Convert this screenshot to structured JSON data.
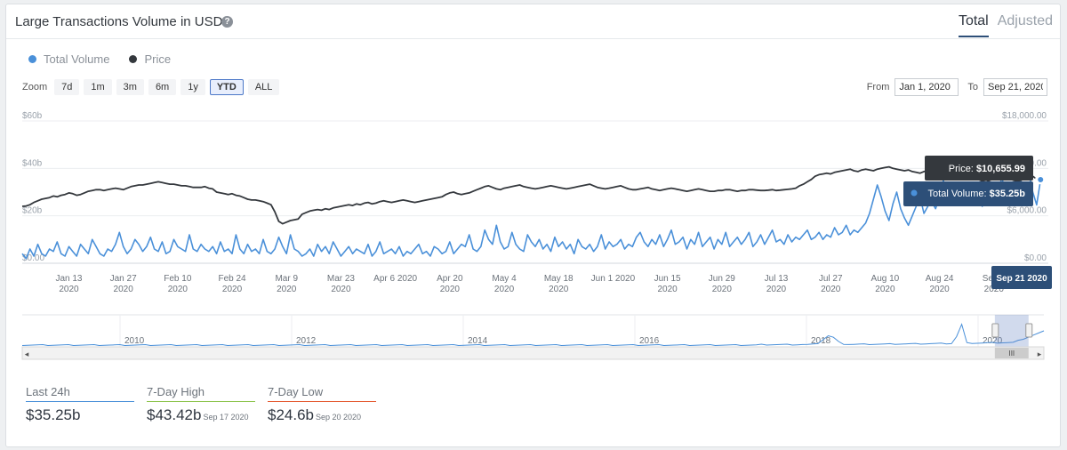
{
  "header": {
    "title": "Large Transactions Volume in USD",
    "help": "?",
    "tabs": [
      "Total",
      "Adjusted"
    ],
    "active_tab": "Total"
  },
  "legend": {
    "volume": "Total Volume",
    "price": "Price"
  },
  "zoom": {
    "label": "Zoom",
    "buttons": [
      "7d",
      "1m",
      "3m",
      "6m",
      "1y",
      "YTD",
      "ALL"
    ],
    "active": "YTD"
  },
  "range": {
    "from_label": "From",
    "from_value": "Jan 1, 2020",
    "to_label": "To",
    "to_value": "Sep 21, 2020"
  },
  "tooltip": {
    "price_label": "Price: ",
    "price_value": "$10,655.99",
    "volume_label": "Total Volume: ",
    "volume_value": "$35.25b",
    "date": "Sep 21 2020"
  },
  "navigator": {
    "years": [
      "2010",
      "2012",
      "2014",
      "2016",
      "2018",
      "2020"
    ],
    "scroll_grip": "III",
    "left_arrow": "◂",
    "right_arrow": "▸",
    "selection": [
      0.952,
      0.985
    ]
  },
  "stats": [
    {
      "label": "Last 24h",
      "value": "$35.25b",
      "date": "",
      "color": "#4a90d9"
    },
    {
      "label": "7-Day High",
      "value": "$43.42b",
      "date": "Sep 17 2020",
      "color": "#8bc34a"
    },
    {
      "label": "7-Day Low",
      "value": "$24.6b",
      "date": "Sep 20 2020",
      "color": "#e4572e"
    }
  ],
  "colors": {
    "volume": "#4a90d9",
    "price": "#34383d"
  },
  "chart_data": {
    "type": "line",
    "title": "Large Transactions Volume in USD",
    "x_ticks": [
      {
        "day": 12,
        "label": [
          "Jan 13",
          "2020"
        ]
      },
      {
        "day": 26,
        "label": [
          "Jan 27",
          "2020"
        ]
      },
      {
        "day": 40,
        "label": [
          "Feb 10",
          "2020"
        ]
      },
      {
        "day": 54,
        "label": [
          "Feb 24",
          "2020"
        ]
      },
      {
        "day": 68,
        "label": [
          "Mar 9",
          "2020"
        ]
      },
      {
        "day": 82,
        "label": [
          "Mar 23",
          "2020"
        ]
      },
      {
        "day": 96,
        "label": [
          "Apr 6 2020"
        ]
      },
      {
        "day": 110,
        "label": [
          "Apr 20",
          "2020"
        ]
      },
      {
        "day": 124,
        "label": [
          "May 4",
          "2020"
        ]
      },
      {
        "day": 138,
        "label": [
          "May 18",
          "2020"
        ]
      },
      {
        "day": 152,
        "label": [
          "Jun 1 2020"
        ]
      },
      {
        "day": 166,
        "label": [
          "Jun 15",
          "2020"
        ]
      },
      {
        "day": 180,
        "label": [
          "Jun 29",
          "2020"
        ]
      },
      {
        "day": 194,
        "label": [
          "Jul 13",
          "2020"
        ]
      },
      {
        "day": 208,
        "label": [
          "Jul 27",
          "2020"
        ]
      },
      {
        "day": 222,
        "label": [
          "Aug 10",
          "2020"
        ]
      },
      {
        "day": 236,
        "label": [
          "Aug 24",
          "2020"
        ]
      },
      {
        "day": 250,
        "label": [
          "Sep 7",
          "2020"
        ]
      }
    ],
    "x_range_days": [
      0,
      264
    ],
    "y_left": {
      "ticks": [
        "$0.00",
        "$20b",
        "$40b",
        "$60b"
      ],
      "min": 0,
      "max": 60
    },
    "y_right": {
      "ticks": [
        "$0.00",
        "$6,000.00",
        "$12,000.00",
        "$18,000.00"
      ],
      "min": 0,
      "max": 18000
    },
    "series": [
      {
        "name": "Total Volume",
        "axis": "left",
        "values": [
          4,
          2,
          6,
          3,
          8,
          4,
          3,
          6,
          5,
          9,
          4,
          3,
          7,
          5,
          3,
          8,
          6,
          4,
          10,
          7,
          4,
          3,
          6,
          5,
          8,
          13,
          7,
          4,
          6,
          10,
          8,
          5,
          7,
          11,
          6,
          5,
          9,
          4,
          5,
          10,
          7,
          6,
          5,
          12,
          6,
          5,
          8,
          6,
          5,
          7,
          4,
          9,
          5,
          6,
          4,
          12,
          6,
          4,
          8,
          5,
          6,
          4,
          10,
          5,
          4,
          6,
          11,
          7,
          4,
          12,
          6,
          5,
          3,
          4,
          6,
          3,
          8,
          5,
          7,
          4,
          9,
          6,
          3,
          5,
          7,
          4,
          6,
          5,
          4,
          8,
          3,
          5,
          9,
          4,
          5,
          6,
          4,
          7,
          3,
          5,
          4,
          6,
          8,
          4,
          5,
          3,
          7,
          6,
          4,
          5,
          9,
          4,
          6,
          8,
          7,
          12,
          6,
          5,
          7,
          14,
          10,
          8,
          16,
          9,
          6,
          7,
          13,
          8,
          6,
          5,
          12,
          9,
          7,
          10,
          6,
          8,
          5,
          11,
          7,
          9,
          6,
          8,
          4,
          10,
          7,
          6,
          8,
          5,
          7,
          12,
          6,
          9,
          7,
          8,
          10,
          6,
          8,
          7,
          11,
          13,
          9,
          7,
          10,
          8,
          12,
          7,
          10,
          14,
          8,
          9,
          11,
          6,
          10,
          8,
          13,
          7,
          9,
          11,
          6,
          10,
          8,
          13,
          7,
          9,
          11,
          8,
          10,
          13,
          7,
          9,
          12,
          8,
          11,
          14,
          9,
          10,
          8,
          12,
          9,
          11,
          10,
          12,
          14,
          10,
          11,
          13,
          10,
          12,
          11,
          15,
          12,
          13,
          16,
          12,
          14,
          13,
          15,
          17,
          21,
          27,
          33,
          28,
          22,
          18,
          25,
          30,
          23,
          19,
          16,
          20,
          24,
          28,
          21,
          24,
          26,
          23,
          28,
          35,
          27,
          25,
          30,
          27,
          33,
          29,
          26,
          32,
          28,
          24,
          33,
          30,
          25,
          29,
          36,
          31,
          27,
          33,
          29,
          35,
          43,
          38,
          30,
          24.6,
          35.25
        ]
      },
      {
        "name": "Price",
        "axis": "right",
        "values": [
          7200,
          7250,
          7400,
          7700,
          7900,
          8100,
          8200,
          8300,
          8500,
          8400,
          8600,
          8700,
          8900,
          8800,
          8600,
          8700,
          8900,
          9100,
          9200,
          9300,
          9300,
          9200,
          9300,
          9400,
          9500,
          9400,
          9300,
          9500,
          9700,
          9800,
          9900,
          9900,
          10000,
          10100,
          10200,
          10300,
          10200,
          10100,
          10000,
          10000,
          9900,
          9800,
          9800,
          9700,
          9600,
          9600,
          9600,
          9700,
          9500,
          9400,
          9000,
          8900,
          8800,
          8700,
          8800,
          8600,
          8500,
          8300,
          8100,
          8000,
          8000,
          7900,
          7800,
          7600,
          7400,
          6500,
          5300,
          5000,
          5200,
          5400,
          5500,
          5600,
          6200,
          6400,
          6600,
          6700,
          6800,
          6700,
          6900,
          6800,
          7000,
          7100,
          7200,
          7300,
          7400,
          7300,
          7500,
          7400,
          7600,
          7700,
          7500,
          7600,
          7800,
          7900,
          7800,
          7700,
          7800,
          7900,
          8000,
          7900,
          7800,
          7700,
          7800,
          7900,
          8000,
          8100,
          8200,
          8300,
          8400,
          8700,
          8900,
          9000,
          8800,
          8700,
          8800,
          8900,
          9100,
          9300,
          9500,
          9700,
          9800,
          9600,
          9400,
          9300,
          9500,
          9600,
          9700,
          9800,
          9900,
          9700,
          9600,
          9500,
          9400,
          9500,
          9600,
          9700,
          9800,
          9700,
          9600,
          9500,
          9400,
          9500,
          9600,
          9700,
          9800,
          9900,
          10000,
          9800,
          9600,
          9500,
          9400,
          9500,
          9600,
          9700,
          9800,
          9600,
          9400,
          9300,
          9300,
          9400,
          9500,
          9600,
          9400,
          9300,
          9200,
          9300,
          9400,
          9500,
          9400,
          9300,
          9200,
          9100,
          9200,
          9300,
          9400,
          9300,
          9200,
          9100,
          9100,
          9200,
          9200,
          9300,
          9300,
          9200,
          9100,
          9200,
          9200,
          9300,
          9300,
          9250,
          9200,
          9200,
          9250,
          9300,
          9200,
          9250,
          9300,
          9350,
          9400,
          9500,
          9800,
          10000,
          10300,
          10600,
          11000,
          11200,
          11300,
          11400,
          11300,
          11500,
          11600,
          11700,
          11800,
          11900,
          11700,
          11600,
          11800,
          11900,
          11800,
          11700,
          11900,
          12000,
          12100,
          12200,
          12000,
          11900,
          11800,
          11700,
          11800,
          11600,
          11500,
          11400,
          11600,
          11700,
          11800,
          11900,
          11700,
          11600,
          11700,
          11800,
          11600,
          11400,
          11500,
          11300,
          11200,
          10800,
          10600,
          10400,
          10300,
          10500,
          10700,
          10600,
          10900,
          11000,
          10700,
          10500,
          10400,
          10500,
          10700,
          10900,
          11000,
          10655.99
        ]
      }
    ]
  }
}
